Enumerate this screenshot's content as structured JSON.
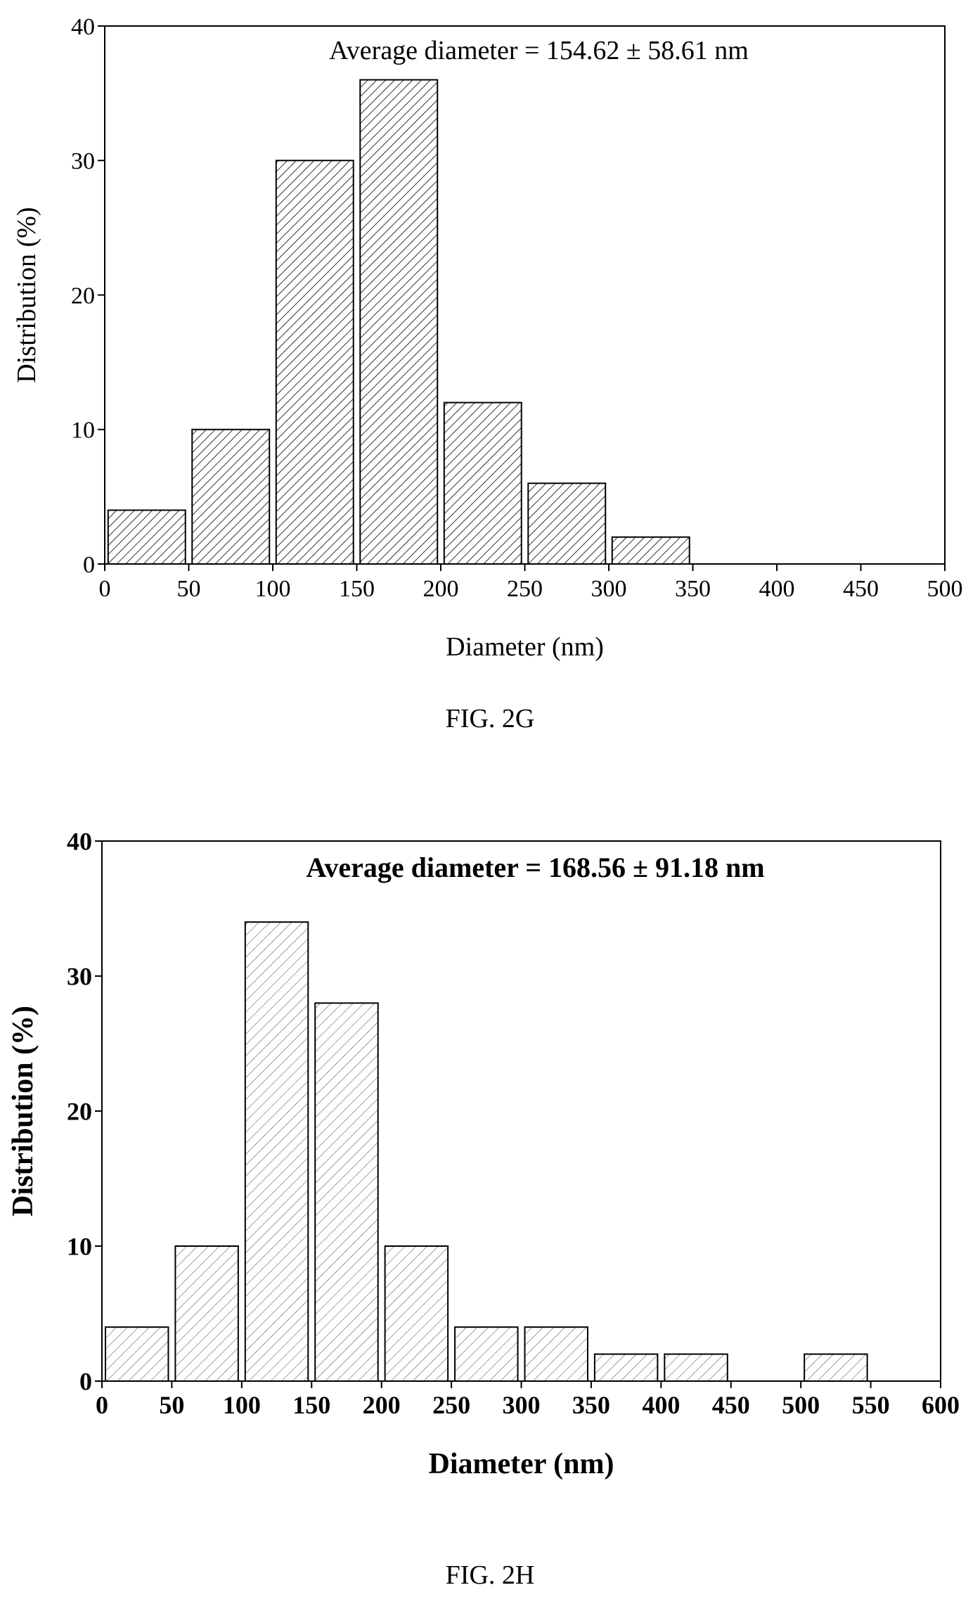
{
  "chart_data": [
    {
      "type": "bar",
      "figure_label": "FIG. 2G",
      "annotation": "Average diameter = 154.62 ± 58.61 nm",
      "xlabel": "Diameter (nm)",
      "ylabel": "Distribution (%)",
      "xlim": [
        0,
        500
      ],
      "ylim": [
        0,
        40
      ],
      "x_ticks": [
        "0",
        "50",
        "100",
        "150",
        "200",
        "250",
        "300",
        "350",
        "400",
        "450",
        "500"
      ],
      "y_ticks": [
        "0",
        "10",
        "20",
        "30",
        "40"
      ],
      "bins": [
        {
          "from": 0,
          "to": 50,
          "value": 4
        },
        {
          "from": 50,
          "to": 100,
          "value": 10
        },
        {
          "from": 100,
          "to": 150,
          "value": 30
        },
        {
          "from": 150,
          "to": 200,
          "value": 36
        },
        {
          "from": 200,
          "to": 250,
          "value": 12
        },
        {
          "from": 250,
          "to": 300,
          "value": 6
        },
        {
          "from": 300,
          "to": 350,
          "value": 2
        }
      ],
      "fill": "diagonal-hatch",
      "grid": false,
      "bold_labels": false
    },
    {
      "type": "bar",
      "figure_label": "FIG. 2H",
      "annotation": "Average diameter = 168.56 ± 91.18 nm",
      "xlabel": "Diameter (nm)",
      "ylabel": "Distribution (%)",
      "xlim": [
        0,
        600
      ],
      "ylim": [
        0,
        40
      ],
      "x_ticks": [
        "0",
        "50",
        "100",
        "150",
        "200",
        "250",
        "300",
        "350",
        "400",
        "450",
        "500",
        "550",
        "600"
      ],
      "y_ticks": [
        "0",
        "10",
        "20",
        "30",
        "40"
      ],
      "bins": [
        {
          "from": 0,
          "to": 50,
          "value": 4
        },
        {
          "from": 50,
          "to": 100,
          "value": 10
        },
        {
          "from": 100,
          "to": 150,
          "value": 34
        },
        {
          "from": 150,
          "to": 200,
          "value": 28
        },
        {
          "from": 200,
          "to": 250,
          "value": 10
        },
        {
          "from": 250,
          "to": 300,
          "value": 4
        },
        {
          "from": 300,
          "to": 350,
          "value": 4
        },
        {
          "from": 350,
          "to": 400,
          "value": 2
        },
        {
          "from": 400,
          "to": 450,
          "value": 2
        },
        {
          "from": 500,
          "to": 550,
          "value": 2
        }
      ],
      "fill": "diagonal-hatch",
      "grid": false,
      "bold_labels": true
    }
  ]
}
